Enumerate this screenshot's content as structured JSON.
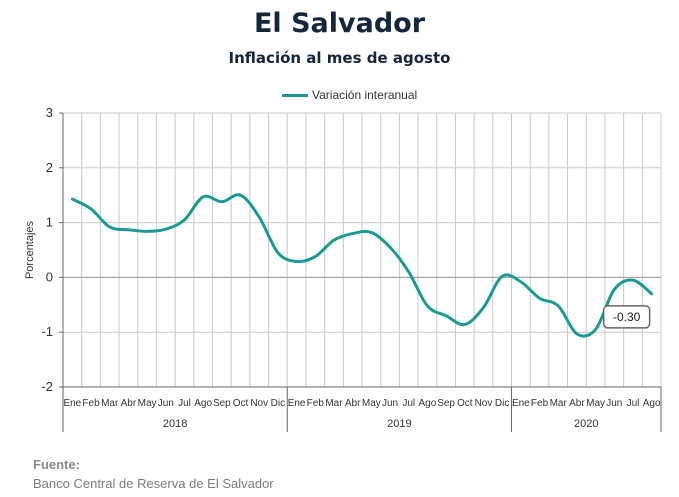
{
  "title": "El Salvador",
  "subtitle": "Inflación al mes de agosto",
  "source": {
    "label": "Fuente:",
    "text": "Banco Central de Reserva de El Salvador"
  },
  "colors": {
    "series": "#1a9a93",
    "grid": "#c8c8c8",
    "axis": "#666666"
  },
  "chart_data": {
    "type": "line",
    "ylabel": "Porcentajes",
    "ylim": [
      -2,
      3
    ],
    "yticks": [
      3,
      2,
      1,
      0,
      -1,
      -2
    ],
    "grid": true,
    "legend_position": "top-center",
    "x": [
      "Ene",
      "Feb",
      "Mar",
      "Abr",
      "May",
      "Jun",
      "Jul",
      "Ago",
      "Sep",
      "Oct",
      "Nov",
      "Dic",
      "Ene",
      "Feb",
      "Mar",
      "Abr",
      "May",
      "Jun",
      "Jul",
      "Ago",
      "Sep",
      "Oct",
      "Nov",
      "Dic",
      "Ene",
      "Feb",
      "Mar",
      "Abr",
      "May",
      "Jun",
      "Jul",
      "Ago"
    ],
    "years": [
      {
        "label": "2018",
        "start": 0,
        "count": 12
      },
      {
        "label": "2019",
        "start": 12,
        "count": 12
      },
      {
        "label": "2020",
        "start": 24,
        "count": 8
      }
    ],
    "series": [
      {
        "name": "Variación interanual",
        "values": [
          1.43,
          1.25,
          0.92,
          0.87,
          0.84,
          0.88,
          1.05,
          1.47,
          1.38,
          1.5,
          1.1,
          0.45,
          0.29,
          0.38,
          0.68,
          0.8,
          0.82,
          0.55,
          0.1,
          -0.52,
          -0.7,
          -0.86,
          -0.55,
          0.02,
          -0.08,
          -0.38,
          -0.52,
          -1.03,
          -0.95,
          -0.22,
          -0.05,
          -0.3
        ]
      }
    ],
    "annotations": [
      {
        "text": "-0.30",
        "index": 31
      }
    ]
  }
}
